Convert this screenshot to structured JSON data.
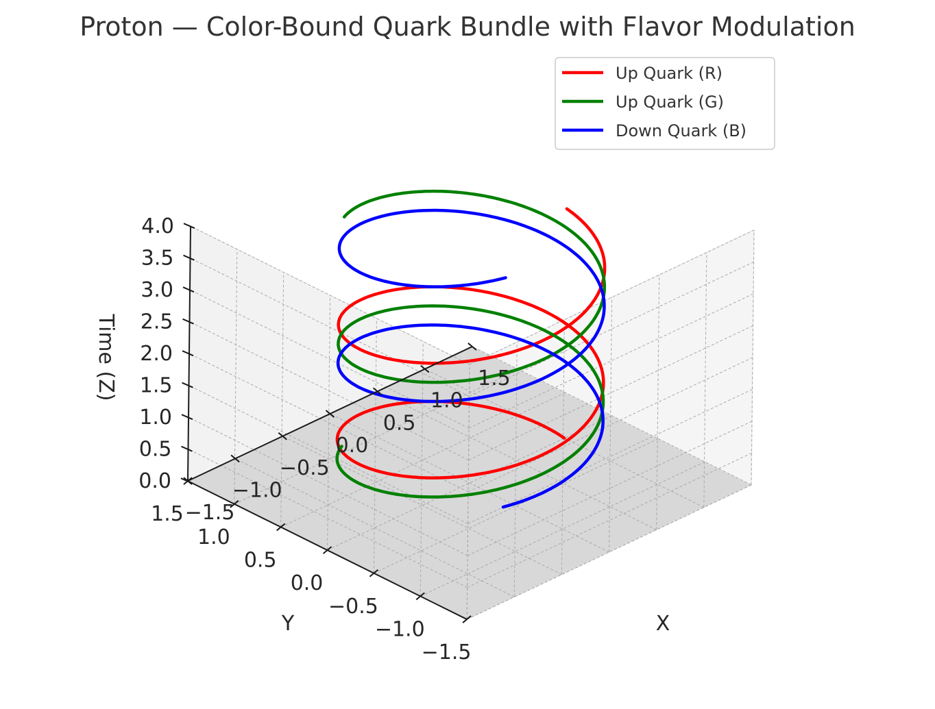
{
  "chart_data": {
    "type": "line",
    "projection": "3d",
    "title": "Proton — Color-Bound Quark Bundle with Flavor Modulation",
    "xlabel": "X",
    "ylabel": "Y",
    "zlabel": "Time (Z)",
    "xlim": [
      -1.5,
      1.5
    ],
    "ylim": [
      -1.5,
      1.5
    ],
    "zlim": [
      0,
      4
    ],
    "x_ticks": [
      "−1.5",
      "−1.0",
      "−0.5",
      "0.0",
      "0.5",
      "1.0",
      "1.5"
    ],
    "y_ticks": [
      "−1.5",
      "−1.0",
      "−0.5",
      "0.0",
      "0.5",
      "1.0",
      "1.5"
    ],
    "z_ticks": [
      "0.0",
      "0.5",
      "1.0",
      "1.5",
      "2.0",
      "2.5",
      "3.0",
      "3.5",
      "4.0"
    ],
    "grid": true,
    "legend_position": "top-right",
    "series": [
      {
        "name": "Up Quark (R)",
        "color": "#ff0000",
        "radius": 1.0,
        "z_start": 0.0,
        "z_end": 3.6,
        "phase_deg": 0
      },
      {
        "name": "Up Quark (G)",
        "color": "#008000",
        "radius": 1.0,
        "z_start": 0.3,
        "z_end": 3.9,
        "phase_deg": 120
      },
      {
        "name": "Down Quark (B)",
        "color": "#0000ff",
        "radius": 1.0,
        "z_start": 0.6,
        "z_end": 4.2,
        "phase_deg": 240
      }
    ],
    "helix_turns": 2
  }
}
